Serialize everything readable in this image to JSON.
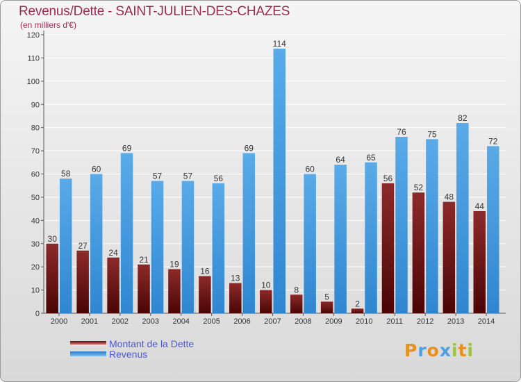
{
  "chart_data": {
    "type": "bar",
    "title": "Revenus/Dette - SAINT-JULIEN-DES-CHAZES",
    "subtitle": "(en milliers d'€)",
    "xlabel": "",
    "ylabel": "",
    "categories": [
      "2000",
      "2001",
      "2002",
      "2003",
      "2004",
      "2005",
      "2006",
      "2007",
      "2008",
      "2009",
      "2010",
      "2011",
      "2012",
      "2013",
      "2014"
    ],
    "series": [
      {
        "name": "Montant de la Dette",
        "color": "#7a1a1a",
        "values": [
          30,
          27,
          24,
          21,
          19,
          16,
          13,
          10,
          8,
          5,
          2,
          56,
          52,
          48,
          44
        ]
      },
      {
        "name": "Revenus",
        "color": "#4da0e3",
        "values": [
          58,
          60,
          69,
          57,
          57,
          56,
          69,
          114,
          60,
          64,
          65,
          76,
          75,
          82,
          72
        ]
      }
    ],
    "ylim": [
      0,
      120
    ],
    "yticks": [
      0,
      10,
      20,
      30,
      40,
      50,
      60,
      70,
      80,
      90,
      100,
      110,
      120
    ],
    "grid": true,
    "legend": "bottom-left"
  },
  "logo": {
    "text": "Proxiti",
    "letters": [
      {
        "ch": "P",
        "color": "#e8901f"
      },
      {
        "ch": "r",
        "color": "#4da0e3"
      },
      {
        "ch": "o",
        "color": "#e8901f"
      },
      {
        "ch": "x",
        "color": "#4da0e3"
      },
      {
        "ch": "i",
        "color": "#9bc341"
      },
      {
        "ch": "t",
        "color": "#e8901f"
      },
      {
        "ch": "i",
        "color": "#9bc341"
      }
    ]
  }
}
